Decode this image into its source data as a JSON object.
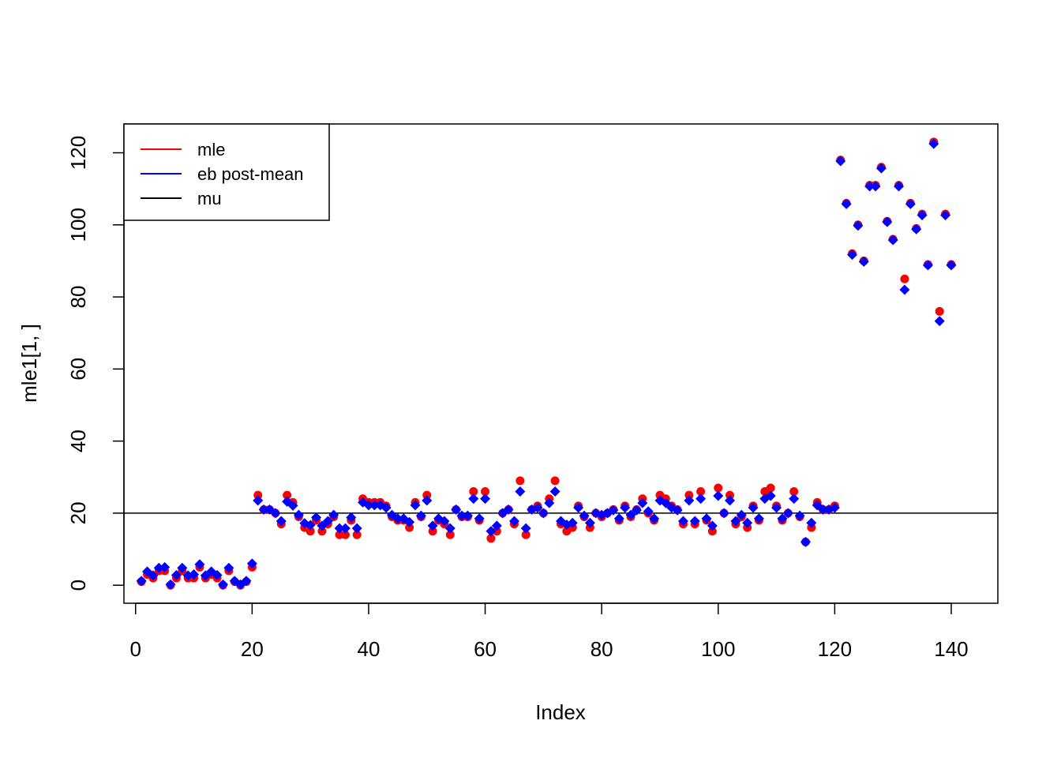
{
  "chart_data": {
    "type": "scatter",
    "title": "",
    "xlabel": "Index",
    "ylabel": "mle1[1, ]",
    "xlim": [
      -2,
      148
    ],
    "ylim": [
      -5,
      128
    ],
    "x_ticks": [
      0,
      20,
      40,
      60,
      80,
      100,
      120,
      140
    ],
    "y_ticks": [
      0,
      20,
      40,
      60,
      80,
      100,
      120
    ],
    "grid": false,
    "legend_position": "top-left",
    "reference_line": {
      "name": "mu",
      "y": 20,
      "color": "#000000"
    },
    "legend": [
      {
        "label": "mle",
        "color": "#ff0000"
      },
      {
        "label": "eb post-mean",
        "color": "#0000ff"
      },
      {
        "label": "mu",
        "color": "#000000"
      }
    ],
    "series": [
      {
        "name": "mle",
        "color": "#ff0000",
        "marker": "circle",
        "x": [
          1,
          2,
          3,
          4,
          5,
          6,
          7,
          8,
          9,
          10,
          11,
          12,
          13,
          14,
          15,
          16,
          17,
          18,
          19,
          20,
          21,
          22,
          23,
          24,
          25,
          26,
          27,
          28,
          29,
          30,
          31,
          32,
          33,
          34,
          35,
          36,
          37,
          38,
          39,
          40,
          41,
          42,
          43,
          44,
          45,
          46,
          47,
          48,
          49,
          50,
          51,
          52,
          53,
          54,
          55,
          56,
          57,
          58,
          59,
          60,
          61,
          62,
          63,
          64,
          65,
          66,
          67,
          68,
          69,
          70,
          71,
          72,
          73,
          74,
          75,
          76,
          77,
          78,
          79,
          80,
          81,
          82,
          83,
          84,
          85,
          86,
          87,
          88,
          89,
          90,
          91,
          92,
          93,
          94,
          95,
          96,
          97,
          98,
          99,
          100,
          101,
          102,
          103,
          104,
          105,
          106,
          107,
          108,
          109,
          110,
          111,
          112,
          113,
          114,
          115,
          116,
          117,
          118,
          119,
          120,
          121,
          122,
          123,
          124,
          125,
          126,
          127,
          128,
          129,
          130,
          131,
          132,
          133,
          134,
          135,
          136,
          137,
          138,
          139,
          140
        ],
        "y": [
          1,
          3,
          2,
          4,
          4,
          0,
          2,
          4,
          2,
          2,
          5,
          2,
          3,
          2,
          0,
          4,
          1,
          0,
          1,
          5,
          25,
          21,
          21,
          20,
          17,
          25,
          23,
          19,
          16,
          15,
          18,
          15,
          17,
          19,
          14,
          14,
          18,
          14,
          24,
          23,
          23,
          23,
          22,
          19,
          18,
          18,
          16,
          23,
          19,
          25,
          15,
          18,
          17,
          14,
          21,
          19,
          19,
          26,
          18,
          26,
          13,
          15,
          20,
          21,
          17,
          29,
          14,
          21,
          22,
          20,
          24,
          29,
          17,
          15,
          16,
          22,
          19,
          16,
          20,
          19,
          20,
          21,
          18,
          22,
          19,
          21,
          24,
          20,
          18,
          25,
          24,
          22,
          21,
          17,
          25,
          17,
          26,
          18,
          15,
          27,
          20,
          25,
          17,
          19,
          16,
          22,
          18,
          26,
          27,
          22,
          18,
          20,
          26,
          19,
          12,
          16,
          23,
          21,
          21,
          22,
          118,
          106,
          92,
          100,
          90,
          111,
          111,
          116,
          101,
          96,
          111,
          85,
          106,
          99,
          103,
          89,
          123,
          76,
          103,
          89
        ]
      },
      {
        "name": "eb post-mean",
        "color": "#0000ff",
        "marker": "diamond",
        "x": [
          1,
          2,
          3,
          4,
          5,
          6,
          7,
          8,
          9,
          10,
          11,
          12,
          13,
          14,
          15,
          16,
          17,
          18,
          19,
          20,
          21,
          22,
          23,
          24,
          25,
          26,
          27,
          28,
          29,
          30,
          31,
          32,
          33,
          34,
          35,
          36,
          37,
          38,
          39,
          40,
          41,
          42,
          43,
          44,
          45,
          46,
          47,
          48,
          49,
          50,
          51,
          52,
          53,
          54,
          55,
          56,
          57,
          58,
          59,
          60,
          61,
          62,
          63,
          64,
          65,
          66,
          67,
          68,
          69,
          70,
          71,
          72,
          73,
          74,
          75,
          76,
          77,
          78,
          79,
          80,
          81,
          82,
          83,
          84,
          85,
          86,
          87,
          88,
          89,
          90,
          91,
          92,
          93,
          94,
          95,
          96,
          97,
          98,
          99,
          100,
          101,
          102,
          103,
          104,
          105,
          106,
          107,
          108,
          109,
          110,
          111,
          112,
          113,
          114,
          115,
          116,
          117,
          118,
          119,
          120,
          121,
          122,
          123,
          124,
          125,
          126,
          127,
          128,
          129,
          130,
          131,
          132,
          133,
          134,
          135,
          136,
          137,
          138,
          139,
          140
        ],
        "y": [
          1.2,
          3.8,
          2.7,
          4.8,
          5.0,
          0.2,
          2.8,
          4.8,
          2.7,
          3.0,
          5.8,
          2.7,
          3.8,
          2.8,
          0.2,
          4.8,
          1.2,
          0.2,
          1.2,
          6.0,
          23.5,
          21.0,
          21.0,
          20.0,
          17.8,
          23.2,
          22.1,
          19.5,
          17.2,
          16.7,
          18.8,
          16.5,
          17.8,
          19.5,
          15.8,
          15.8,
          18.8,
          15.8,
          23.0,
          22.2,
          22.2,
          22.2,
          21.5,
          19.5,
          18.5,
          18.5,
          17.5,
          22.2,
          19.3,
          23.5,
          16.5,
          18.5,
          17.8,
          15.8,
          21.0,
          19.3,
          19.3,
          24.0,
          18.5,
          24.0,
          15.0,
          16.5,
          20.0,
          21.0,
          17.8,
          26.0,
          15.8,
          21.0,
          21.5,
          20.0,
          22.8,
          26.0,
          17.8,
          16.8,
          17.3,
          21.5,
          19.3,
          17.3,
          20.0,
          19.5,
          20.0,
          20.8,
          18.5,
          21.5,
          19.5,
          20.8,
          22.8,
          20.5,
          18.5,
          23.5,
          22.8,
          21.5,
          20.8,
          17.8,
          23.5,
          17.8,
          24.0,
          18.5,
          16.5,
          24.8,
          20.0,
          23.5,
          17.8,
          19.5,
          17.3,
          21.5,
          18.5,
          24.0,
          24.8,
          21.5,
          18.5,
          20.0,
          24.0,
          19.3,
          12.0,
          17.3,
          22.2,
          21.0,
          21.0,
          21.5,
          117.7,
          105.8,
          91.7,
          99.8,
          89.8,
          110.7,
          110.7,
          115.7,
          100.8,
          95.8,
          110.7,
          82.0,
          105.8,
          98.8,
          102.7,
          88.8,
          122.5,
          73.3,
          102.7,
          88.8
        ]
      }
    ]
  }
}
